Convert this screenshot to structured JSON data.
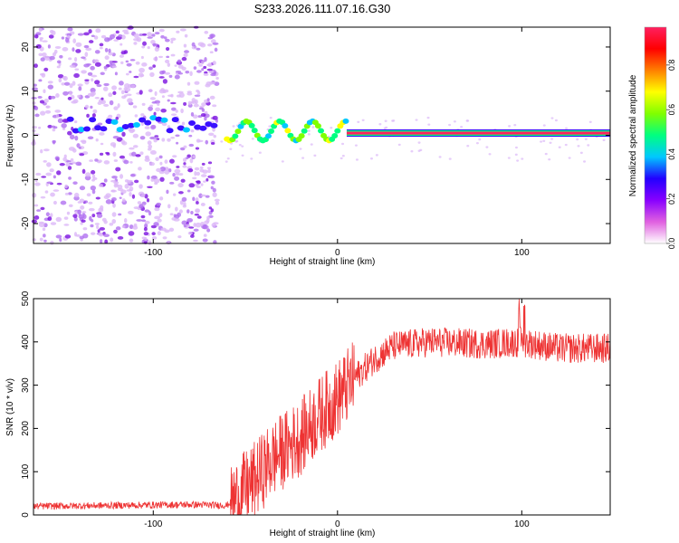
{
  "title": "S233.2026.111.07.16.G30",
  "chart_data": [
    {
      "type": "heatmap",
      "xlabel": "Height of straight line (km)",
      "ylabel": "Frequency (Hz)",
      "xlim": [
        -165,
        148
      ],
      "ylim": [
        -24.5,
        24.5
      ],
      "xticks": [
        -100,
        0,
        100
      ],
      "yticks": [
        -20,
        -10,
        0,
        10,
        20
      ],
      "colorbar": {
        "label": "Normalized spectral amplitude",
        "range": [
          0.0,
          0.97
        ],
        "ticks": [
          0.0,
          0.2,
          0.4,
          0.6,
          0.8
        ],
        "colors": [
          "#ffffff",
          "#e060e0",
          "#8800ff",
          "#2200ff",
          "#00c8ff",
          "#00ff80",
          "#80ff00",
          "#ffff00",
          "#ff8000",
          "#ff0000",
          "#ff2060"
        ]
      },
      "description_points": {
        "noise_region_x": [
          -165,
          -65
        ],
        "ridge_center_hz": 0.5,
        "ridge_x_start": -60,
        "ridge_peak_amplitude_x_start": 5
      }
    },
    {
      "type": "line",
      "xlabel": "Height of straight line (km)",
      "ylabel": "SNR (10 * v/v)",
      "xlim": [
        -165,
        148
      ],
      "ylim": [
        0,
        500
      ],
      "xticks": [
        -100,
        0,
        100
      ],
      "yticks": [
        0,
        100,
        200,
        300,
        400,
        500
      ],
      "color": "#ee3333",
      "envelope": {
        "x": [
          -165,
          -120,
          -80,
          -60,
          -55,
          -45,
          -35,
          -20,
          -10,
          0,
          10,
          20,
          30,
          50,
          80,
          100,
          120,
          148
        ],
        "value": [
          20,
          22,
          24,
          22,
          40,
          80,
          130,
          180,
          230,
          270,
          320,
          360,
          390,
          400,
          395,
          400,
          385,
          385
        ]
      }
    }
  ]
}
